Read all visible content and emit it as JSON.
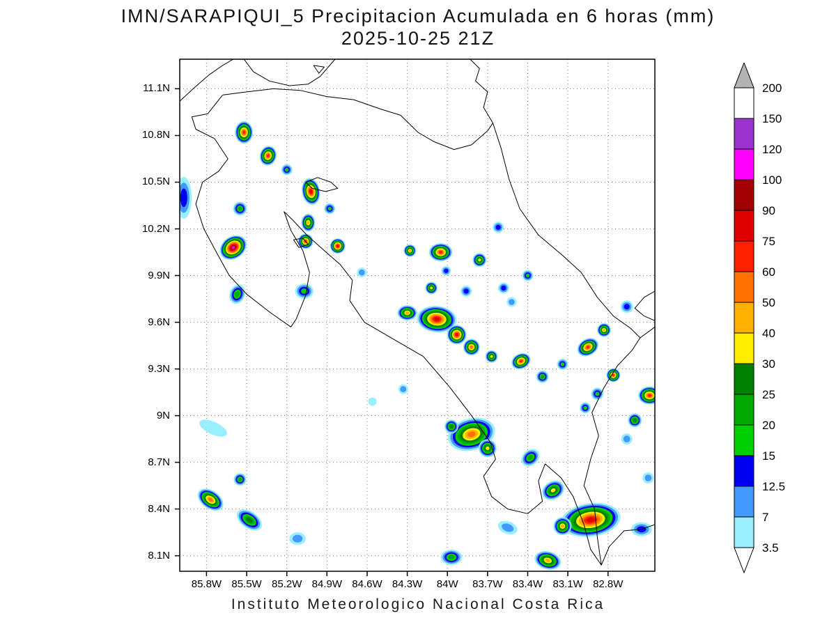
{
  "title": {
    "line1": "IMN/SARAPIQUI_5 Precipitacion Acumulada en 6 horas (mm)",
    "line2": "2025-10-25 21Z"
  },
  "footer": "Instituto Meteorologico Nacional Costa Rica",
  "map": {
    "geo": {
      "lon_min": -86.0,
      "lon_max": -82.45,
      "lat_min": 8.0,
      "lat_max": 11.29
    },
    "grid_color": "#808080",
    "x_ticks": [
      {
        "lon": -85.8,
        "label": "85.8W"
      },
      {
        "lon": -85.5,
        "label": "85.5W"
      },
      {
        "lon": -85.2,
        "label": "85.2W"
      },
      {
        "lon": -84.9,
        "label": "84.9W"
      },
      {
        "lon": -84.6,
        "label": "84.6W"
      },
      {
        "lon": -84.3,
        "label": "84.3W"
      },
      {
        "lon": -84.0,
        "label": "84W"
      },
      {
        "lon": -83.7,
        "label": "83.7W"
      },
      {
        "lon": -83.4,
        "label": "83.4W"
      },
      {
        "lon": -83.1,
        "label": "83.1W"
      },
      {
        "lon": -82.8,
        "label": "82.8W"
      }
    ],
    "y_ticks": [
      {
        "lat": 11.1,
        "label": "11.1N"
      },
      {
        "lat": 10.8,
        "label": "10.8N"
      },
      {
        "lat": 10.5,
        "label": "10.5N"
      },
      {
        "lat": 10.2,
        "label": "10.2N"
      },
      {
        "lat": 9.9,
        "label": "9.9N"
      },
      {
        "lat": 9.6,
        "label": "9.6N"
      },
      {
        "lat": 9.3,
        "label": "9.3N"
      },
      {
        "lat": 9.0,
        "label": "9N"
      },
      {
        "lat": 8.7,
        "label": "8.7N"
      },
      {
        "lat": 8.4,
        "label": "8.4N"
      },
      {
        "lat": 8.1,
        "label": "8.1N"
      }
    ],
    "coastlines": [
      [
        [
          -86.0,
          11.02
        ],
        [
          -85.9,
          11.1
        ],
        [
          -85.78,
          11.19
        ],
        [
          -85.68,
          11.25
        ],
        [
          -85.6,
          11.29
        ]
      ],
      [
        [
          -85.52,
          11.29
        ],
        [
          -85.45,
          11.21
        ],
        [
          -85.33,
          11.15
        ],
        [
          -85.18,
          11.12
        ],
        [
          -85.04,
          11.13
        ],
        [
          -84.95,
          11.18
        ],
        [
          -84.88,
          11.25
        ],
        [
          -84.84,
          11.29
        ]
      ],
      [
        [
          -85.0,
          11.25
        ],
        [
          -84.96,
          11.2
        ],
        [
          -84.92,
          11.24
        ],
        [
          -85.0,
          11.25
        ]
      ],
      [
        [
          -85.68,
          11.06
        ],
        [
          -85.5,
          11.08
        ],
        [
          -85.3,
          11.1
        ],
        [
          -85.1,
          11.09
        ],
        [
          -84.9,
          11.05
        ],
        [
          -84.7,
          11.03
        ],
        [
          -84.5,
          10.97
        ],
        [
          -84.35,
          10.93
        ],
        [
          -84.22,
          10.82
        ],
        [
          -84.1,
          10.76
        ],
        [
          -83.95,
          10.71
        ],
        [
          -83.82,
          10.74
        ],
        [
          -83.7,
          10.83
        ],
        [
          -83.66,
          10.88
        ],
        [
          -83.6,
          10.72
        ],
        [
          -83.54,
          10.52
        ],
        [
          -83.46,
          10.33
        ],
        [
          -83.32,
          10.16
        ],
        [
          -83.14,
          10.03
        ],
        [
          -83.0,
          9.92
        ],
        [
          -82.88,
          9.76
        ],
        [
          -82.76,
          9.64
        ],
        [
          -82.63,
          9.56
        ],
        [
          -82.56,
          9.5
        ],
        [
          -82.62,
          9.42
        ],
        [
          -82.73,
          9.32
        ],
        [
          -82.83,
          9.18
        ],
        [
          -82.92,
          9.02
        ],
        [
          -82.87,
          8.87
        ],
        [
          -82.93,
          8.72
        ],
        [
          -82.98,
          8.55
        ],
        [
          -82.9,
          8.4
        ],
        [
          -82.88,
          8.22
        ],
        [
          -82.85,
          8.04
        ],
        [
          -82.93,
          8.14
        ],
        [
          -82.98,
          8.3
        ],
        [
          -83.06,
          8.48
        ],
        [
          -83.15,
          8.6
        ],
        [
          -83.27,
          8.69
        ],
        [
          -83.32,
          8.58
        ],
        [
          -83.29,
          8.45
        ],
        [
          -83.4,
          8.37
        ],
        [
          -83.55,
          8.4
        ],
        [
          -83.67,
          8.48
        ],
        [
          -83.73,
          8.61
        ],
        [
          -83.64,
          8.72
        ],
        [
          -83.68,
          8.83
        ],
        [
          -83.82,
          9.0
        ],
        [
          -83.98,
          9.18
        ],
        [
          -84.18,
          9.38
        ],
        [
          -84.42,
          9.5
        ],
        [
          -84.62,
          9.6
        ],
        [
          -84.73,
          9.74
        ],
        [
          -84.71,
          9.87
        ],
        [
          -84.8,
          9.97
        ],
        [
          -84.92,
          10.06
        ],
        [
          -85.05,
          10.16
        ],
        [
          -85.16,
          10.26
        ],
        [
          -85.22,
          10.31
        ],
        [
          -85.17,
          10.19
        ],
        [
          -85.08,
          10.06
        ],
        [
          -85.03,
          9.92
        ],
        [
          -85.06,
          9.77
        ],
        [
          -85.13,
          9.62
        ],
        [
          -85.17,
          9.57
        ],
        [
          -85.32,
          9.66
        ],
        [
          -85.5,
          9.78
        ],
        [
          -85.63,
          9.9
        ],
        [
          -85.72,
          10.04
        ],
        [
          -85.82,
          10.2
        ],
        [
          -85.88,
          10.36
        ],
        [
          -85.83,
          10.5
        ],
        [
          -85.71,
          10.57
        ],
        [
          -85.64,
          10.65
        ],
        [
          -85.74,
          10.78
        ],
        [
          -85.88,
          10.84
        ],
        [
          -85.91,
          10.92
        ],
        [
          -85.79,
          10.94
        ],
        [
          -85.68,
          11.06
        ]
      ],
      [
        [
          -83.66,
          10.88
        ],
        [
          -83.73,
          10.98
        ],
        [
          -83.7,
          11.08
        ],
        [
          -83.79,
          11.15
        ],
        [
          -83.76,
          11.23
        ],
        [
          -83.83,
          11.29
        ]
      ],
      [
        [
          -82.56,
          9.5
        ],
        [
          -82.48,
          9.55
        ],
        [
          -82.45,
          9.57
        ]
      ],
      [
        [
          -82.45,
          9.8
        ],
        [
          -82.53,
          9.76
        ],
        [
          -82.6,
          9.69
        ],
        [
          -82.53,
          9.64
        ],
        [
          -82.45,
          9.61
        ]
      ],
      [
        [
          -82.85,
          8.04
        ],
        [
          -82.79,
          8.16
        ],
        [
          -82.68,
          8.26
        ],
        [
          -82.55,
          8.27
        ],
        [
          -82.45,
          8.3
        ]
      ],
      [
        [
          -85.06,
          10.5
        ],
        [
          -84.97,
          10.53
        ],
        [
          -84.87,
          10.5
        ],
        [
          -84.82,
          10.46
        ],
        [
          -84.91,
          10.44
        ],
        [
          -85.01,
          10.46
        ],
        [
          -85.06,
          10.5
        ]
      ],
      [
        [
          -85.15,
          10.13
        ],
        [
          -85.08,
          10.14
        ],
        [
          -85.04,
          10.1
        ],
        [
          -85.11,
          10.08
        ],
        [
          -85.15,
          10.13
        ]
      ]
    ]
  },
  "legend": {
    "labels": [
      "200",
      "150",
      "120",
      "100",
      "90",
      "75",
      "60",
      "50",
      "40",
      "30",
      "25",
      "20",
      "15",
      "12.5",
      "7",
      "3.5"
    ],
    "top_arrow_color": "#b3b3b3",
    "bottom_arrow_color": "#ffffff"
  },
  "precip": {
    "units": "mm",
    "levels": [
      {
        "value": 3.5,
        "color": "#99eeff"
      },
      {
        "value": 7,
        "color": "#4499ff"
      },
      {
        "value": 12.5,
        "color": "#0000f0"
      },
      {
        "value": 15,
        "color": "#00d000"
      },
      {
        "value": 20,
        "color": "#00a800"
      },
      {
        "value": 25,
        "color": "#008000"
      },
      {
        "value": 30,
        "color": "#ffee00"
      },
      {
        "value": 40,
        "color": "#ffb000"
      },
      {
        "value": 50,
        "color": "#ff7000"
      },
      {
        "value": 60,
        "color": "#ff2000"
      },
      {
        "value": 75,
        "color": "#e00000"
      },
      {
        "value": 90,
        "color": "#a00000"
      },
      {
        "value": 100,
        "color": "#ff00ff"
      },
      {
        "value": 120,
        "color": "#9933cc"
      },
      {
        "value": 150,
        "color": "#ffffff"
      }
    ],
    "cells": [
      {
        "lon": -85.52,
        "lat": 10.82,
        "max": 60,
        "r": 13,
        "sy": 1.25
      },
      {
        "lon": -85.34,
        "lat": 10.67,
        "max": 60,
        "r": 12,
        "sy": 1.2,
        "rot": 15
      },
      {
        "lon": -85.2,
        "lat": 10.58,
        "max": 15,
        "r": 8
      },
      {
        "lon": -85.97,
        "lat": 10.4,
        "max": 12.5,
        "r": 15,
        "sx": 0.75,
        "sy": 2.0
      },
      {
        "lon": -85.55,
        "lat": 10.33,
        "max": 20,
        "r": 10
      },
      {
        "lon": -85.02,
        "lat": 10.44,
        "max": 75,
        "r": 13,
        "sy": 1.5,
        "rot": -10
      },
      {
        "lon": -85.04,
        "lat": 10.24,
        "max": 40,
        "r": 10,
        "sy": 1.3
      },
      {
        "lon": -85.6,
        "lat": 10.08,
        "max": 100,
        "r": 16,
        "sx": 1.3,
        "rot": -35
      },
      {
        "lon": -85.06,
        "lat": 10.12,
        "max": 60,
        "r": 11
      },
      {
        "lon": -84.82,
        "lat": 10.09,
        "max": 75,
        "r": 11
      },
      {
        "lon": -84.88,
        "lat": 10.33,
        "max": 15,
        "r": 8
      },
      {
        "lon": -85.07,
        "lat": 9.8,
        "max": 15,
        "r": 11,
        "sx": 1.2
      },
      {
        "lon": -85.57,
        "lat": 9.78,
        "max": 20,
        "r": 11,
        "rot": 20,
        "sy": 1.3
      },
      {
        "lon": -84.28,
        "lat": 10.06,
        "max": 40,
        "r": 9
      },
      {
        "lon": -84.05,
        "lat": 10.05,
        "max": 60,
        "r": 13,
        "sx": 1.3
      },
      {
        "lon": -83.76,
        "lat": 10.0,
        "max": 30,
        "r": 10
      },
      {
        "lon": -83.62,
        "lat": 10.21,
        "max": 12.5,
        "r": 8
      },
      {
        "lon": -83.58,
        "lat": 9.82,
        "max": 12.5,
        "r": 8
      },
      {
        "lon": -84.12,
        "lat": 9.82,
        "max": 30,
        "r": 9
      },
      {
        "lon": -83.86,
        "lat": 9.8,
        "max": 12.5,
        "r": 8
      },
      {
        "lon": -83.4,
        "lat": 9.9,
        "max": 15,
        "r": 8
      },
      {
        "lon": -84.01,
        "lat": 9.93,
        "max": 12.5,
        "r": 7
      },
      {
        "lon": -84.3,
        "lat": 9.66,
        "max": 40,
        "r": 11,
        "sx": 1.3
      },
      {
        "lon": -84.08,
        "lat": 9.62,
        "max": 75,
        "r": 19,
        "sx": 1.5,
        "rot": 5
      },
      {
        "lon": -83.93,
        "lat": 9.52,
        "max": 75,
        "r": 14
      },
      {
        "lon": -83.82,
        "lat": 9.44,
        "max": 50,
        "r": 12
      },
      {
        "lon": -83.67,
        "lat": 9.38,
        "max": 30,
        "r": 9
      },
      {
        "lon": -83.45,
        "lat": 9.35,
        "max": 60,
        "r": 11,
        "rot": -25,
        "sx": 1.3
      },
      {
        "lon": -83.29,
        "lat": 9.25,
        "max": 20,
        "r": 9
      },
      {
        "lon": -83.14,
        "lat": 9.33,
        "max": 15,
        "r": 8
      },
      {
        "lon": -82.95,
        "lat": 9.44,
        "max": 60,
        "r": 12,
        "sx": 1.35,
        "rot": -30
      },
      {
        "lon": -82.83,
        "lat": 9.55,
        "max": 40,
        "r": 10
      },
      {
        "lon": -82.76,
        "lat": 9.26,
        "max": 60,
        "r": 10
      },
      {
        "lon": -82.88,
        "lat": 9.14,
        "max": 15,
        "r": 9
      },
      {
        "lon": -82.49,
        "lat": 9.13,
        "max": 60,
        "r": 13,
        "sx": 1.25
      },
      {
        "lon": -82.66,
        "lat": 9.7,
        "max": 12.5,
        "r": 9
      },
      {
        "lon": -82.6,
        "lat": 8.97,
        "max": 25,
        "r": 10
      },
      {
        "lon": -82.66,
        "lat": 8.85,
        "max": 7,
        "r": 8
      },
      {
        "lon": -83.52,
        "lat": 9.73,
        "max": 7,
        "r": 7
      },
      {
        "lon": -84.33,
        "lat": 9.17,
        "max": 7,
        "r": 7
      },
      {
        "lon": -84.56,
        "lat": 9.09,
        "max": 3.5,
        "r": 6
      },
      {
        "lon": -84.64,
        "lat": 9.92,
        "max": 7,
        "r": 7
      },
      {
        "lon": -83.82,
        "lat": 8.88,
        "max": 50,
        "r": 23,
        "sx": 1.5,
        "rot": -15
      },
      {
        "lon": -83.7,
        "lat": 8.79,
        "max": 30,
        "r": 13
      },
      {
        "lon": -83.97,
        "lat": 8.93,
        "max": 25,
        "r": 10
      },
      {
        "lon": -83.38,
        "lat": 8.73,
        "max": 20,
        "r": 11,
        "rot": -40,
        "sx": 1.3
      },
      {
        "lon": -83.21,
        "lat": 8.52,
        "max": 30,
        "r": 13,
        "rot": -30,
        "sx": 1.3
      },
      {
        "lon": -82.93,
        "lat": 8.33,
        "max": 75,
        "r": 24,
        "sx": 1.8,
        "rot": -8
      },
      {
        "lon": -83.14,
        "lat": 8.29,
        "max": 40,
        "r": 13,
        "rot": -20
      },
      {
        "lon": -82.55,
        "lat": 8.27,
        "max": 12.5,
        "r": 10,
        "sx": 1.5
      },
      {
        "lon": -82.97,
        "lat": 9.05,
        "max": 15,
        "r": 8
      },
      {
        "lon": -85.55,
        "lat": 8.59,
        "max": 20,
        "r": 9
      },
      {
        "lon": -85.77,
        "lat": 8.46,
        "max": 50,
        "r": 13,
        "rot": 35,
        "sx": 1.6
      },
      {
        "lon": -85.48,
        "lat": 8.33,
        "max": 25,
        "r": 12,
        "rot": 35,
        "sx": 1.7
      },
      {
        "lon": -85.12,
        "lat": 8.21,
        "max": 7,
        "r": 9,
        "sx": 1.3
      },
      {
        "lon": -85.75,
        "lat": 8.92,
        "max": 3.5,
        "r": 9,
        "sx": 2.4,
        "rot": 25
      },
      {
        "lon": -83.97,
        "lat": 8.09,
        "max": 20,
        "r": 11,
        "sx": 1.4
      },
      {
        "lon": -83.55,
        "lat": 8.28,
        "max": 7,
        "r": 9,
        "sx": 1.6,
        "rot": 20
      },
      {
        "lon": -83.25,
        "lat": 8.07,
        "max": 40,
        "r": 13,
        "sx": 1.5,
        "rot": 15
      },
      {
        "lon": -82.5,
        "lat": 8.6,
        "max": 7,
        "r": 8
      }
    ]
  },
  "chart_data": {
    "type": "heatmap",
    "title": "IMN/SARAPIQUI_5 Precipitacion Acumulada en 6 horas (mm)",
    "subtitle": "2025-10-25 21Z",
    "units": "mm",
    "colorbar_levels": [
      3.5,
      7,
      12.5,
      15,
      20,
      25,
      30,
      40,
      50,
      60,
      75,
      90,
      100,
      120,
      150,
      200
    ],
    "x_ticks": [
      "85.8W",
      "85.5W",
      "85.2W",
      "84.9W",
      "84.6W",
      "84.3W",
      "84W",
      "83.7W",
      "83.4W",
      "83.1W",
      "82.8W"
    ],
    "y_ticks": [
      "11.1N",
      "10.8N",
      "10.5N",
      "10.2N",
      "9.9N",
      "9.6N",
      "9.3N",
      "9N",
      "8.7N",
      "8.4N",
      "8.1N"
    ],
    "legend_position": "right",
    "grid": true,
    "credit": "Instituto Meteorologico Nacional Costa Rica"
  }
}
